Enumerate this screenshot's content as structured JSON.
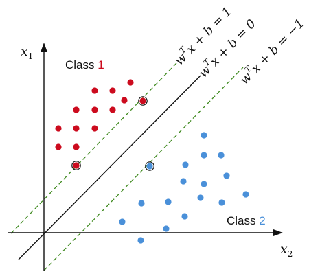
{
  "axes": {
    "x_label": "x",
    "x_sub": "2",
    "y_label": "x",
    "y_sub": "1"
  },
  "equations": [
    {
      "w": "w",
      "t": "T",
      "rest": "x + b = 1"
    },
    {
      "w": "w",
      "t": "T",
      "rest": "x + b = 0"
    },
    {
      "w": "w",
      "t": "T",
      "rest": "x + b = −1"
    }
  ],
  "class1": {
    "label": "Class",
    "number": "1",
    "color": "#cc0b1e"
  },
  "class2": {
    "label": "Class",
    "number": "2",
    "color": "#4a90d9"
  },
  "colors": {
    "axis": "#111111",
    "boundary": "#111111",
    "margin": "#3f8a1f"
  }
}
